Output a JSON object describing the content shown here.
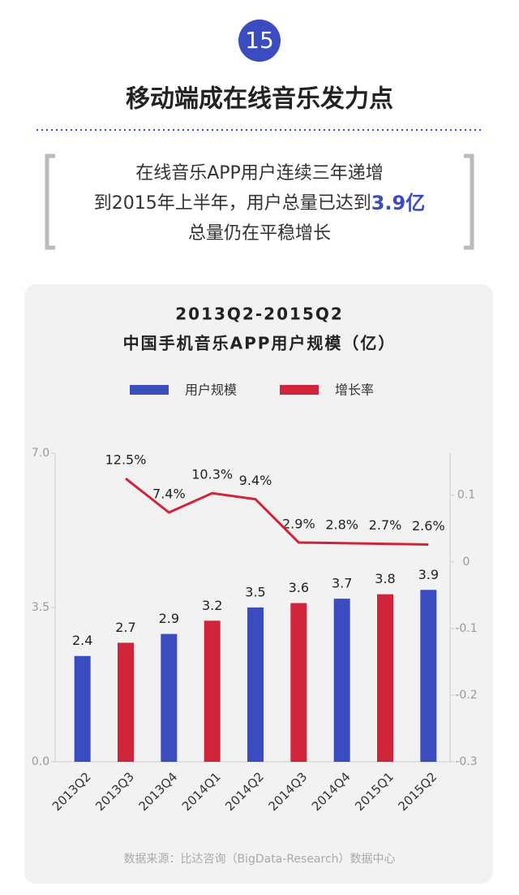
{
  "header": {
    "number": "15",
    "title": "移动端成在线音乐发力点"
  },
  "quote": {
    "line1": "在线音乐APP用户连续三年递增",
    "line2": "到2015年上半年，用户总量已达到",
    "highlight": "3.9亿",
    "line3": "总量仍在平稳增长"
  },
  "chart_data": {
    "type": "bar",
    "title": "2013Q2-2015Q2",
    "subtitle": "中国手机音乐APP用户规模（亿）",
    "categories": [
      "2013Q2",
      "2013Q3",
      "2013Q4",
      "2014Q1",
      "2014Q2",
      "2014Q3",
      "2014Q4",
      "2015Q1",
      "2015Q2"
    ],
    "series": [
      {
        "name": "用户规模",
        "color": "#3b4bc0",
        "values": [
          2.4,
          2.7,
          2.9,
          3.2,
          3.5,
          3.6,
          3.7,
          3.8,
          3.9
        ],
        "colors": [
          "#3b4bc0",
          "#d0243a",
          "#3b4bc0",
          "#d0243a",
          "#3b4bc0",
          "#d0243a",
          "#3b4bc0",
          "#d0243a",
          "#3b4bc0"
        ]
      },
      {
        "name": "增长率",
        "color": "#d0243a",
        "axis": "y2",
        "type": "line",
        "values": [
          null,
          0.125,
          0.074,
          0.103,
          0.094,
          0.029,
          0.028,
          0.027,
          0.026
        ],
        "value_labels": [
          null,
          "12.5%",
          "7.4%",
          "10.3%",
          "9.4%",
          "2.9%",
          "2.8%",
          "2.7%",
          "2.6%"
        ]
      }
    ],
    "ylim": [
      0,
      7
    ],
    "yticks": [
      {
        "value": 0,
        "label": "0.0"
      },
      3.5,
      {
        "value": 7,
        "label": "7.0"
      }
    ],
    "y2lim": [
      -0.3,
      0.163
    ],
    "y2ticks": [
      -0.3,
      -0.2,
      -0.1,
      0,
      0.1
    ],
    "legend": "top"
  },
  "footer": {
    "source": "数据来源：比达咨询（BigData-Research）数据中心"
  }
}
